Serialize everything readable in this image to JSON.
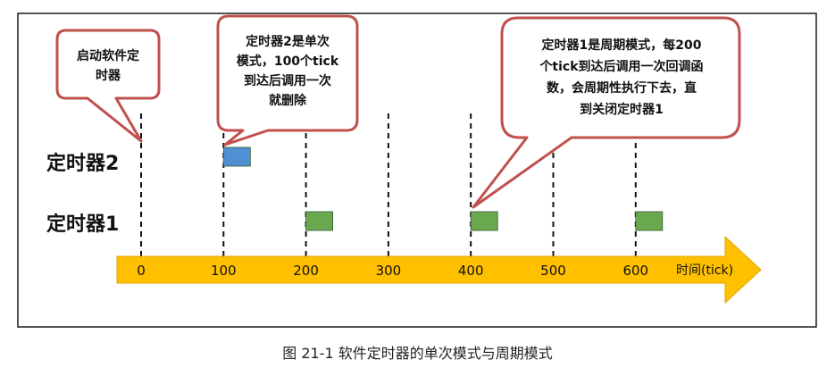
{
  "colors": {
    "frame": "#1a1a1a",
    "callout_fill": "#ffffff",
    "callout_stroke": "#c0504d",
    "axis_fill": "#ffc000",
    "timer2_block": "#4f8fd3",
    "timer1_block": "#6aa84f",
    "caption_text": "#222222"
  },
  "diagram": {
    "rows": [
      {
        "id": "timer2",
        "label": "定时器2"
      },
      {
        "id": "timer1",
        "label": "定时器1"
      }
    ],
    "axis_ticks": [
      "0",
      "100",
      "200",
      "300",
      "400",
      "500",
      "600"
    ],
    "axis_label": "时间(tick)",
    "timer2_blocks_at_tick": [
      100
    ],
    "timer1_blocks_at_tick": [
      200,
      400,
      600
    ],
    "callouts": [
      {
        "id": "start",
        "lines": [
          "启动软件定",
          "时器"
        ]
      },
      {
        "id": "timer2-note",
        "lines": [
          "定时器2是单次",
          "模式，100个tick",
          "到达后调用一次",
          "就删除"
        ]
      },
      {
        "id": "timer1-note",
        "lines": [
          "定时器1是周期模式，每200",
          "个tick到达后调用一次回调函",
          "数，会周期性执行下去，直",
          "到关闭定时器1"
        ]
      }
    ]
  },
  "caption": "图 21-1 软件定时器的单次模式与周期模式"
}
